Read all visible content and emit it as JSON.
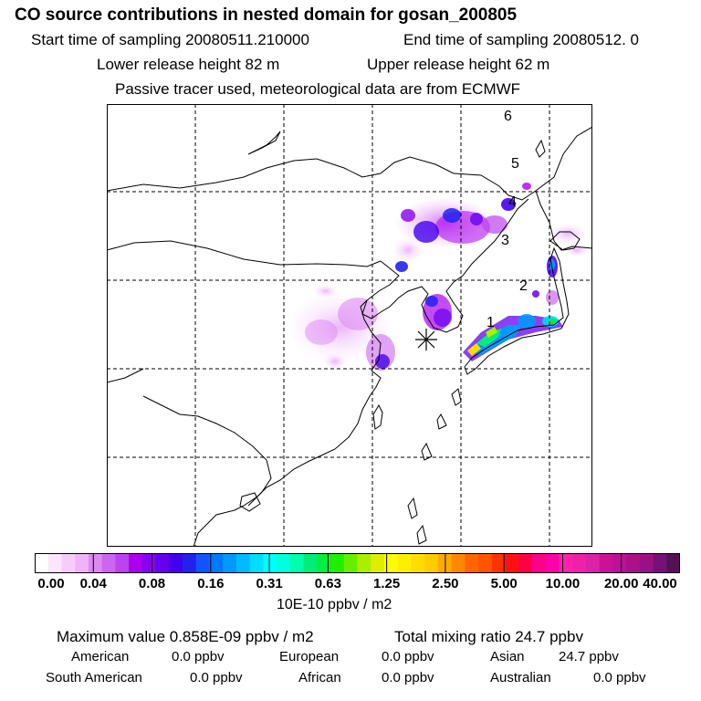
{
  "header": {
    "title": "CO  source contributions in nested domain for gosan_200805",
    "start_time": "Start time of sampling 20080511.210000",
    "end_time": "End time of sampling 20080512.     0",
    "lower_height": "Lower release height   82 m",
    "upper_height": "Upper release height   62 m",
    "tracer_note": "Passive tracer used, meteorological data are from ECMWF"
  },
  "map": {
    "trajectory_labels": [
      "1",
      "2",
      "3",
      "4",
      "5",
      "6"
    ],
    "receptor_marker": "asterisk"
  },
  "colorbar": {
    "ticks": [
      "0.00",
      "0.04",
      "0.08",
      "0.16",
      "0.31",
      "0.63",
      "1.25",
      "2.50",
      "5.00",
      "10.00",
      "20.00",
      "40.00"
    ],
    "unit": "10E-10 ppbv / m2",
    "colors": [
      "#ffffff",
      "#fbe6fd",
      "#f6ccfb",
      "#f0b3f9",
      "#dd88f3",
      "#cc66f0",
      "#bb44ee",
      "#aa00ee",
      "#8800ee",
      "#6600ee",
      "#4400ee",
      "#2222ee",
      "#1155ff",
      "#0077ff",
      "#0099ff",
      "#00bbff",
      "#00ddff",
      "#00ffff",
      "#00ffdd",
      "#00ffaa",
      "#00ee77",
      "#00ee44",
      "#22ee00",
      "#66ee00",
      "#aaee00",
      "#ddee00",
      "#ffff00",
      "#ffee00",
      "#ffdd00",
      "#ffcc00",
      "#ffaa00",
      "#ff8800",
      "#ff6600",
      "#ff5500",
      "#ff3300",
      "#ff1111",
      "#ff0044",
      "#ff0088",
      "#ff00aa",
      "#ff22aa",
      "#ee22aa",
      "#dd22aa",
      "#cc1199",
      "#bb1199",
      "#aa1188",
      "#991188",
      "#771177",
      "#551155"
    ]
  },
  "stats": {
    "max_value": "Maximum value  0.858E-09 ppbv / m2",
    "total_mixing": "Total mixing ratio       24.7 ppbv"
  },
  "regions": [
    {
      "label": "American",
      "value": "0.0 ppbv"
    },
    {
      "label": "European",
      "value": "0.0 ppbv"
    },
    {
      "label": "Asian",
      "value": "24.7 ppbv"
    },
    {
      "label": "South American",
      "value": "0.0 ppbv"
    },
    {
      "label": "African",
      "value": "0.0 ppbv"
    },
    {
      "label": "Australian",
      "value": "0.0 ppbv"
    }
  ]
}
